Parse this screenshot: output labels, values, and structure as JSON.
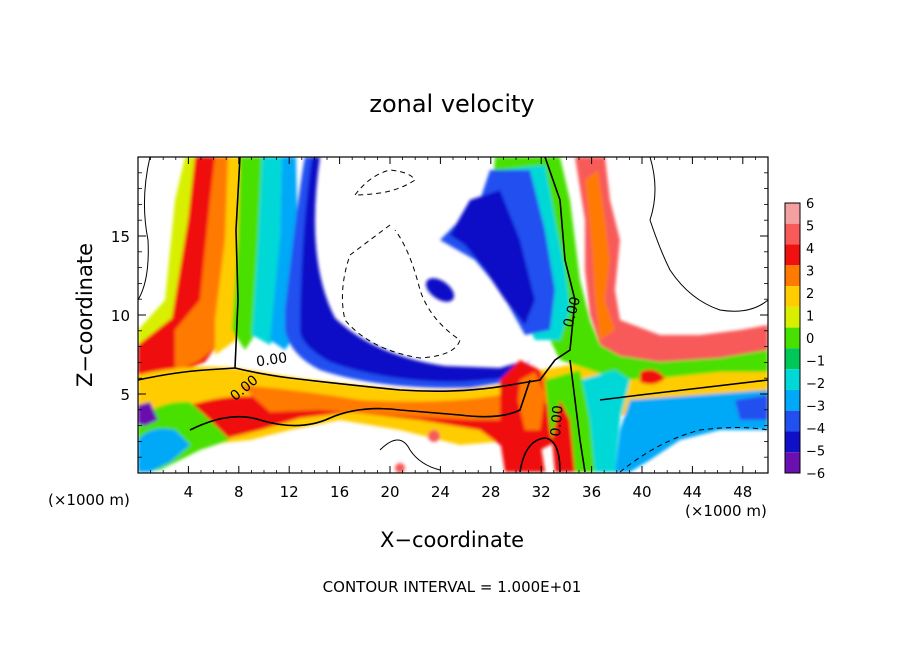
{
  "chart_data": {
    "type": "heatmap",
    "title": "zonal velocity",
    "xlabel": "X−coordinate",
    "ylabel": "Z−coordinate",
    "x_unit_left": "(×1000 m)",
    "x_unit_right": "(×1000 m)",
    "xlim": [
      0,
      50
    ],
    "ylim": [
      0,
      20
    ],
    "x_ticks": [
      4,
      8,
      12,
      16,
      20,
      24,
      28,
      32,
      36,
      40,
      44,
      48
    ],
    "y_ticks": [
      5,
      10,
      15
    ],
    "contour_labels": [
      {
        "text": "0.00",
        "x": 10.6,
        "y": 7.2,
        "angle": -8
      },
      {
        "text": "0.00",
        "x": 8.4,
        "y": 5.4,
        "angle": -40
      },
      {
        "text": "0.00",
        "x": 34.4,
        "y": 10.2,
        "angle": -75
      },
      {
        "text": "0.00",
        "x": 33.2,
        "y": 3.3,
        "angle": -85
      }
    ],
    "colorbar": {
      "levels": [
        6,
        5,
        4,
        3,
        2,
        1,
        0,
        -1,
        -2,
        -3,
        -4,
        -5,
        -6
      ],
      "tick_labels": [
        "6",
        "5",
        "4",
        "3",
        "2",
        "1",
        "0",
        "−1",
        "−2",
        "−3",
        "−4",
        "−5",
        "−6"
      ],
      "colors": [
        "#f4a0a0",
        "#f85a5a",
        "#f01010",
        "#ff7a00",
        "#ffcc00",
        "#d8f000",
        "#48e000",
        "#00c858",
        "#00d8d8",
        "#00a8f8",
        "#2050f0",
        "#1010c8",
        "#6a10b0"
      ]
    },
    "grid": false,
    "legend": "colorbar-right"
  },
  "footer": {
    "contour_interval": "CONTOUR INTERVAL = 1.000E+01"
  }
}
